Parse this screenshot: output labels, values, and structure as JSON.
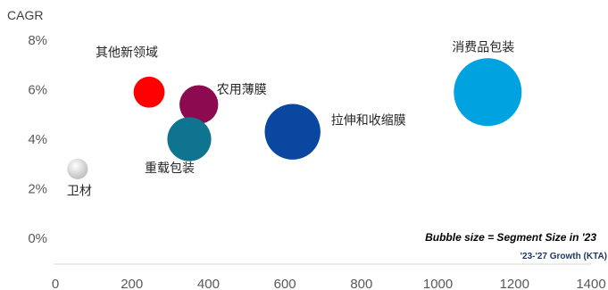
{
  "chart_data": {
    "type": "scatter",
    "subtype": "bubble",
    "ylabel": "CAGR",
    "xlim": [
      0,
      1400
    ],
    "ylim": [
      0,
      8
    ],
    "x_ticks": [
      "0",
      "200",
      "400",
      "600",
      "800",
      "1000",
      "1200",
      "1400"
    ],
    "y_ticks": [
      "0%",
      "2%",
      "4%",
      "6%",
      "8%"
    ],
    "grid": false,
    "notes": {
      "bubble_size": "Bubble size = Segment Size in '23",
      "x_axis_note": "'23-'27 Growth (KTA)"
    },
    "points": [
      {
        "name": "其他新领域",
        "x": 245,
        "y": 5.9,
        "size": 0.09,
        "color": "#FF0000"
      },
      {
        "name": "农用薄膜",
        "x": 375,
        "y": 5.4,
        "size": 0.14,
        "color": "#8B0A50"
      },
      {
        "name": "重载包装",
        "x": 350,
        "y": 4.0,
        "size": 0.18,
        "color": "#0E7490"
      },
      {
        "name": "拉伸和收缩膜",
        "x": 620,
        "y": 4.3,
        "size": 0.29,
        "color": "#0A47A0"
      },
      {
        "name": "消费品包装",
        "x": 1130,
        "y": 5.9,
        "size": 0.43,
        "color": "#00A3E0"
      },
      {
        "name": "卫材",
        "x": 58,
        "y": 2.8,
        "size": 0.04,
        "color": "#D9D9D9"
      }
    ]
  }
}
